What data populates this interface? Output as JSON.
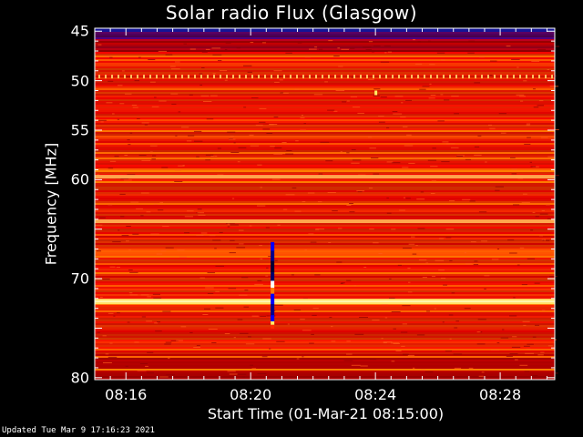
{
  "chart_data": {
    "type": "heatmap",
    "title": "Solar radio Flux (Glasgow)",
    "xlabel": "Start Time (01-Mar-21 08:15:00)",
    "ylabel": "Frequency [MHz]",
    "x_ticks": [
      "08:16",
      "08:20",
      "08:24",
      "08:28"
    ],
    "x_tick_minutes": [
      16,
      20,
      24,
      28
    ],
    "x_range_minutes": [
      15.0,
      29.75
    ],
    "y_ticks": [
      45,
      50,
      55,
      60,
      65,
      70,
      75,
      80
    ],
    "y_tick_labels": [
      "45",
      "50",
      "55",
      "60",
      "",
      "70",
      "",
      "80"
    ],
    "y_range_mhz": [
      44.7,
      80.2
    ],
    "colormap": [
      "#00008b",
      "#0000ff",
      "#8b0000",
      "#dc0000",
      "#ff2a00",
      "#ff7a00",
      "#ffb000",
      "#ffee66"
    ],
    "bright_bands_mhz": [
      59.7,
      64.2,
      72.3
    ],
    "burst": {
      "time_minutes": 20.7,
      "freq_range_mhz": [
        66.3,
        75.0
      ]
    },
    "grid": false,
    "colorbar": false
  },
  "footer": {
    "updated": "Updated Tue Mar  9 17:16:23 2021"
  }
}
